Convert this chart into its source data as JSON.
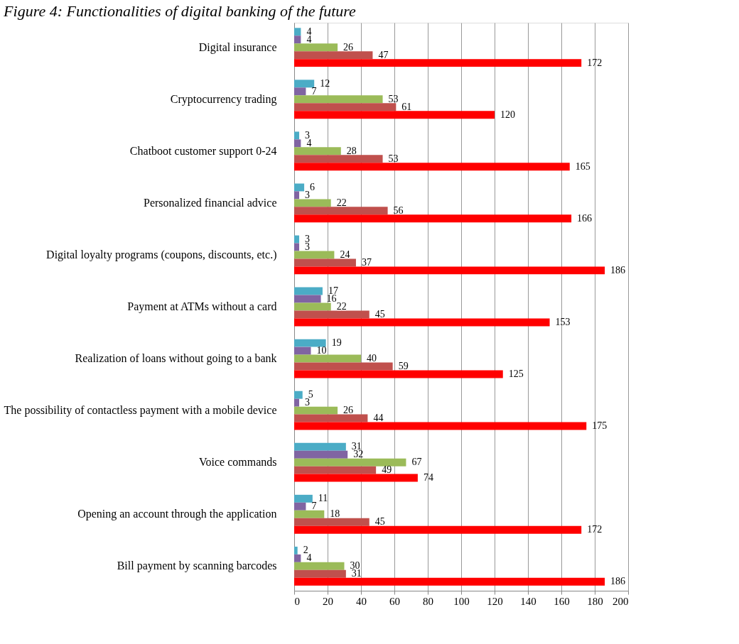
{
  "chart_data": {
    "type": "bar",
    "orientation": "horizontal",
    "title": "Figure 4: Functionalities of digital banking of the future",
    "categories": [
      "Digital insurance",
      "Cryptocurrency trading",
      "Chatboot customer support 0-24",
      "Personalized financial advice",
      "Digital loyalty programs (coupons, discounts, etc.)",
      "Payment at ATMs without a card",
      "Realization of loans without going to a bank",
      "The possibility of contactless payment with a mobile device",
      "Voice commands",
      "Opening an account through the application",
      "Bill payment by scanning barcodes"
    ],
    "series": [
      {
        "color": "#4bacc6",
        "values": [
          4,
          12,
          3,
          6,
          3,
          17,
          19,
          5,
          31,
          11,
          2
        ]
      },
      {
        "color": "#8064a2",
        "values": [
          4,
          7,
          4,
          3,
          3,
          16,
          10,
          3,
          32,
          7,
          4
        ]
      },
      {
        "color": "#9bbb59",
        "values": [
          26,
          53,
          28,
          22,
          24,
          22,
          40,
          26,
          67,
          18,
          30
        ]
      },
      {
        "color": "#c0504d",
        "values": [
          47,
          61,
          53,
          56,
          37,
          45,
          59,
          44,
          49,
          45,
          31
        ]
      },
      {
        "color": "#ff0000",
        "values": [
          172,
          120,
          165,
          166,
          186,
          153,
          125,
          175,
          74,
          172,
          186
        ]
      }
    ],
    "xlim": [
      0,
      200
    ],
    "xticks": [
      0,
      20,
      40,
      60,
      80,
      100,
      120,
      140,
      160,
      180,
      200
    ],
    "grid": "x",
    "legend": false,
    "data_labels": true
  }
}
